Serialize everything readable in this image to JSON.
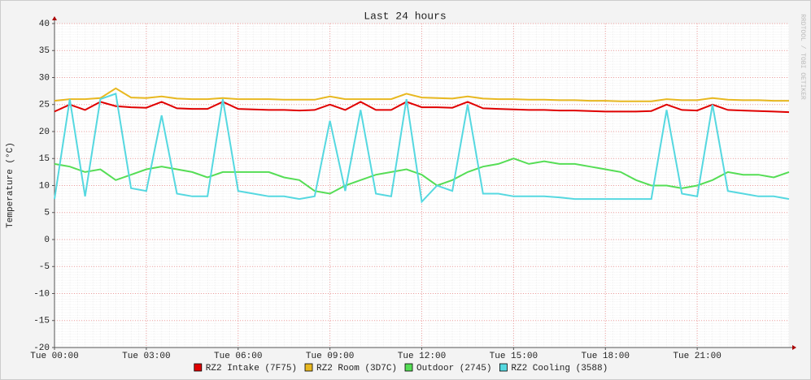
{
  "chart_data": {
    "type": "line",
    "title": "Last 24 hours",
    "y_label": "Temperature (°C)",
    "watermark": "RRDTOOL / TOBI OETIKER",
    "x": [
      0,
      0.5,
      1,
      1.5,
      2,
      2.5,
      3,
      3.5,
      4,
      4.5,
      5,
      5.5,
      6,
      6.5,
      7,
      7.5,
      8,
      8.5,
      9,
      9.5,
      10,
      10.5,
      11,
      11.5,
      12,
      12.5,
      13,
      13.5,
      14,
      14.5,
      15,
      15.5,
      16,
      16.5,
      17,
      17.5,
      18,
      18.5,
      19,
      19.5,
      20,
      20.5,
      21,
      21.5,
      22,
      22.5,
      23,
      23.5,
      24
    ],
    "xlim": [
      0,
      24
    ],
    "xticks": [
      {
        "value": 0,
        "label": "Tue 00:00"
      },
      {
        "value": 3,
        "label": "Tue 03:00"
      },
      {
        "value": 6,
        "label": "Tue 06:00"
      },
      {
        "value": 9,
        "label": "Tue 09:00"
      },
      {
        "value": 12,
        "label": "Tue 12:00"
      },
      {
        "value": 15,
        "label": "Tue 15:00"
      },
      {
        "value": 18,
        "label": "Tue 18:00"
      },
      {
        "value": 21,
        "label": "Tue 21:00"
      }
    ],
    "ylim": [
      -20,
      40
    ],
    "yticks": [
      -20,
      -15,
      -10,
      -5,
      0,
      5,
      10,
      15,
      20,
      25,
      30,
      35,
      40
    ],
    "grid": true,
    "series": [
      {
        "name": "RZ2 Intake (7F75)",
        "color": "#e00000",
        "values": [
          23.7,
          25,
          24,
          25.5,
          24.7,
          24.5,
          24.4,
          25.5,
          24.3,
          24.2,
          24.2,
          25.5,
          24.2,
          24.1,
          24,
          24,
          23.9,
          24,
          25,
          24,
          25.5,
          24,
          24,
          25.5,
          24.5,
          24.5,
          24.4,
          25.5,
          24.3,
          24.2,
          24.1,
          24,
          24,
          23.9,
          23.9,
          23.8,
          23.7,
          23.7,
          23.7,
          23.8,
          25,
          24,
          23.9,
          25,
          24,
          23.9,
          23.8,
          23.7,
          23.6
        ]
      },
      {
        "name": "RZ2 Room (3D7C)",
        "color": "#e8b820",
        "values": [
          25.7,
          26,
          26,
          26.2,
          28,
          26.3,
          26.2,
          26.5,
          26.1,
          26,
          26,
          26.2,
          26,
          26,
          26,
          25.9,
          25.9,
          25.9,
          26.5,
          26,
          26,
          26,
          26,
          27,
          26.3,
          26.2,
          26.1,
          26.5,
          26.1,
          26,
          26,
          25.9,
          25.9,
          25.8,
          25.8,
          25.7,
          25.7,
          25.6,
          25.6,
          25.6,
          26,
          25.8,
          25.8,
          26.2,
          25.9,
          25.8,
          25.8,
          25.7,
          25.7
        ]
      },
      {
        "name": "Outdoor (2745)",
        "color": "#55dd55",
        "values": [
          14,
          13.5,
          12.5,
          13,
          11,
          12,
          13,
          13.5,
          13,
          12.5,
          11.5,
          12.5,
          12.5,
          12.5,
          12.5,
          11.5,
          11,
          9,
          8.5,
          10,
          11,
          12,
          12.5,
          13,
          12,
          10,
          11,
          12.5,
          13.5,
          14,
          15,
          14,
          14.5,
          14,
          14,
          13.5,
          13,
          12.5,
          11,
          10,
          10,
          9.5,
          10,
          11,
          12.5,
          12,
          12,
          11.5,
          12.5
        ]
      },
      {
        "name": "RZ2 Cooling (3588)",
        "color": "#55d8e0",
        "values": [
          7.5,
          26,
          8,
          26,
          27,
          9.5,
          9,
          23,
          8.5,
          8,
          8,
          26,
          9,
          8.5,
          8,
          8,
          7.5,
          8,
          22,
          9,
          24,
          8.5,
          8,
          26,
          7,
          10,
          9,
          25,
          8.5,
          8.5,
          8,
          8,
          8,
          7.8,
          7.5,
          7.5,
          7.5,
          7.5,
          7.5,
          7.5,
          24,
          8.5,
          8,
          25,
          9,
          8.5,
          8,
          8,
          7.5
        ]
      }
    ]
  }
}
